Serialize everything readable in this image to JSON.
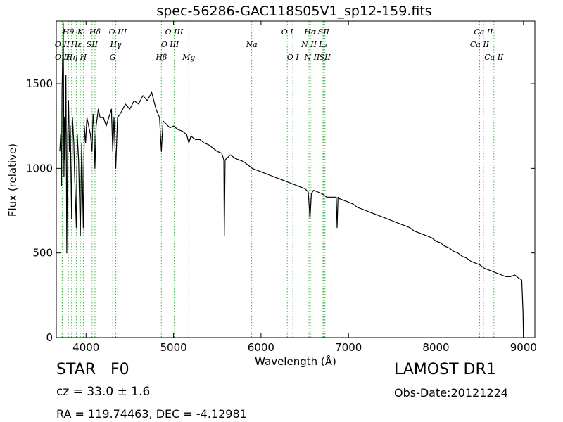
{
  "title": "spec-56286-GAC118S05V1_sp12-159.fits",
  "footer": {
    "class_label": "STAR   F0",
    "cz": "cz = 33.0 ± 1.6",
    "radec": "RA = 119.74463, DEC = -4.12981",
    "survey": "LAMOST DR1",
    "obs_date": "Obs-Date:20121224"
  },
  "chart_data": {
    "type": "line",
    "xlabel": "Wavelength (Å)",
    "ylabel": "Flux (relative)",
    "xlim": [
      3660,
      9130
    ],
    "ylim": [
      0,
      1870
    ],
    "x_ticks": [
      4000,
      5000,
      6000,
      7000,
      8000,
      9000
    ],
    "y_ticks": [
      0,
      500,
      1000,
      1500
    ],
    "line_color": "#000000",
    "marker_color": "#3cb43c",
    "lines": [
      {
        "name": "O II",
        "wave": 3727,
        "row": 2
      },
      {
        "name": "Hη",
        "wave": 3835,
        "row": 3
      },
      {
        "name": "Hθ",
        "wave": 3798,
        "row": 1
      },
      {
        "name": "O II",
        "wave": 3729,
        "row": 3
      },
      {
        "name": "K",
        "wave": 3934,
        "row": 1
      },
      {
        "name": "Hε",
        "wave": 3889,
        "row": 2
      },
      {
        "name": "SII",
        "wave": 4069,
        "row": 2
      },
      {
        "name": "H",
        "wave": 3969,
        "row": 3
      },
      {
        "name": "Hδ",
        "wave": 4102,
        "row": 1
      },
      {
        "name": "O III",
        "wave": 4363,
        "row": 1
      },
      {
        "name": "Hγ",
        "wave": 4340,
        "row": 2
      },
      {
        "name": "G",
        "wave": 4305,
        "row": 3
      },
      {
        "name": "O III",
        "wave": 5007,
        "row": 1
      },
      {
        "name": "O III",
        "wave": 4959,
        "row": 2
      },
      {
        "name": "Hβ",
        "wave": 4861,
        "row": 3
      },
      {
        "name": "Mg",
        "wave": 5175,
        "row": 3
      },
      {
        "name": "Na",
        "wave": 5893,
        "row": 2
      },
      {
        "name": "O I",
        "wave": 6300,
        "row": 1
      },
      {
        "name": "O I",
        "wave": 6364,
        "row": 3
      },
      {
        "name": "Hα",
        "wave": 6563,
        "row": 1
      },
      {
        "name": "SII",
        "wave": 6716,
        "row": 1
      },
      {
        "name": "N II",
        "wave": 6548,
        "row": 2
      },
      {
        "name": "L₃",
        "wave": 6708,
        "row": 2
      },
      {
        "name": "N II",
        "wave": 6583,
        "row": 3
      },
      {
        "name": "SII",
        "wave": 6731,
        "row": 3
      },
      {
        "name": "Ca II",
        "wave": 8542,
        "row": 1
      },
      {
        "name": "Ca II",
        "wave": 8498,
        "row": 2
      },
      {
        "name": "Ca II",
        "wave": 8662,
        "row": 3
      }
    ],
    "spectrum": [
      [
        3700,
        1100
      ],
      [
        3710,
        1200
      ],
      [
        3720,
        900
      ],
      [
        3725,
        1450
      ],
      [
        3735,
        1700
      ],
      [
        3740,
        1860
      ],
      [
        3748,
        950
      ],
      [
        3755,
        1300
      ],
      [
        3760,
        1050
      ],
      [
        3770,
        1550
      ],
      [
        3780,
        500
      ],
      [
        3790,
        1200
      ],
      [
        3800,
        1400
      ],
      [
        3810,
        1100
      ],
      [
        3820,
        1250
      ],
      [
        3835,
        700
      ],
      [
        3845,
        1300
      ],
      [
        3860,
        1150
      ],
      [
        3870,
        950
      ],
      [
        3889,
        650
      ],
      [
        3900,
        1200
      ],
      [
        3915,
        1050
      ],
      [
        3934,
        600
      ],
      [
        3950,
        1150
      ],
      [
        3969,
        650
      ],
      [
        3980,
        1250
      ],
      [
        3995,
        1150
      ],
      [
        4010,
        1300
      ],
      [
        4030,
        1250
      ],
      [
        4050,
        1200
      ],
      [
        4069,
        1100
      ],
      [
        4080,
        1320
      ],
      [
        4090,
        1250
      ],
      [
        4102,
        1000
      ],
      [
        4115,
        1250
      ],
      [
        4140,
        1350
      ],
      [
        4160,
        1300
      ],
      [
        4200,
        1300
      ],
      [
        4230,
        1250
      ],
      [
        4260,
        1300
      ],
      [
        4290,
        1350
      ],
      [
        4305,
        1100
      ],
      [
        4320,
        1300
      ],
      [
        4340,
        1000
      ],
      [
        4360,
        1300
      ],
      [
        4400,
        1330
      ],
      [
        4450,
        1380
      ],
      [
        4500,
        1350
      ],
      [
        4550,
        1400
      ],
      [
        4600,
        1380
      ],
      [
        4650,
        1430
      ],
      [
        4700,
        1400
      ],
      [
        4750,
        1450
      ],
      [
        4800,
        1350
      ],
      [
        4840,
        1300
      ],
      [
        4861,
        1100
      ],
      [
        4880,
        1280
      ],
      [
        4920,
        1260
      ],
      [
        4960,
        1240
      ],
      [
        5000,
        1250
      ],
      [
        5050,
        1230
      ],
      [
        5100,
        1220
      ],
      [
        5150,
        1200
      ],
      [
        5175,
        1150
      ],
      [
        5200,
        1190
      ],
      [
        5250,
        1170
      ],
      [
        5300,
        1170
      ],
      [
        5350,
        1150
      ],
      [
        5400,
        1140
      ],
      [
        5450,
        1120
      ],
      [
        5500,
        1100
      ],
      [
        5550,
        1090
      ],
      [
        5575,
        1050
      ],
      [
        5580,
        600
      ],
      [
        5590,
        1050
      ],
      [
        5650,
        1080
      ],
      [
        5700,
        1060
      ],
      [
        5750,
        1050
      ],
      [
        5800,
        1040
      ],
      [
        5850,
        1020
      ],
      [
        5900,
        1000
      ],
      [
        5950,
        990
      ],
      [
        6000,
        980
      ],
      [
        6050,
        970
      ],
      [
        6100,
        960
      ],
      [
        6150,
        950
      ],
      [
        6200,
        940
      ],
      [
        6250,
        930
      ],
      [
        6300,
        920
      ],
      [
        6350,
        910
      ],
      [
        6400,
        900
      ],
      [
        6450,
        890
      ],
      [
        6500,
        880
      ],
      [
        6540,
        860
      ],
      [
        6560,
        700
      ],
      [
        6575,
        850
      ],
      [
        6600,
        870
      ],
      [
        6650,
        860
      ],
      [
        6700,
        850
      ],
      [
        6750,
        830
      ],
      [
        6800,
        830
      ],
      [
        6860,
        830
      ],
      [
        6870,
        650
      ],
      [
        6880,
        830
      ],
      [
        6900,
        820
      ],
      [
        6950,
        810
      ],
      [
        7000,
        800
      ],
      [
        7050,
        790
      ],
      [
        7100,
        770
      ],
      [
        7150,
        760
      ],
      [
        7200,
        750
      ],
      [
        7250,
        740
      ],
      [
        7300,
        730
      ],
      [
        7350,
        720
      ],
      [
        7400,
        710
      ],
      [
        7450,
        700
      ],
      [
        7500,
        690
      ],
      [
        7550,
        680
      ],
      [
        7600,
        670
      ],
      [
        7650,
        660
      ],
      [
        7700,
        650
      ],
      [
        7750,
        630
      ],
      [
        7800,
        620
      ],
      [
        7850,
        610
      ],
      [
        7900,
        600
      ],
      [
        7950,
        590
      ],
      [
        8000,
        570
      ],
      [
        8050,
        560
      ],
      [
        8100,
        540
      ],
      [
        8150,
        530
      ],
      [
        8200,
        510
      ],
      [
        8250,
        500
      ],
      [
        8300,
        480
      ],
      [
        8350,
        470
      ],
      [
        8400,
        450
      ],
      [
        8450,
        440
      ],
      [
        8500,
        430
      ],
      [
        8550,
        410
      ],
      [
        8600,
        400
      ],
      [
        8650,
        390
      ],
      [
        8700,
        380
      ],
      [
        8750,
        370
      ],
      [
        8800,
        360
      ],
      [
        8850,
        360
      ],
      [
        8900,
        370
      ],
      [
        8950,
        350
      ],
      [
        8980,
        340
      ],
      [
        8995,
        150
      ],
      [
        9000,
        0
      ]
    ]
  }
}
